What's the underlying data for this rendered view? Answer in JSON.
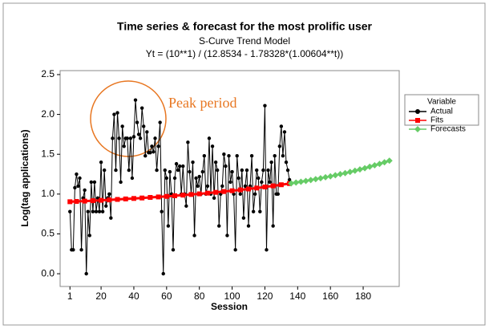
{
  "chart_data": {
    "type": "line",
    "title": "Time series & forecast for the most prolific user",
    "subtitle": "S-Curve Trend Model",
    "equation": "Yt = (10**1) / (12.8534 - 1.78328*(1.00604**t))",
    "x_label": "Session",
    "y_label": "Log(tag applications)",
    "annotation": "Peak period",
    "legend_title": "Variable",
    "legend_position": "right",
    "xlim": [
      -5,
      202
    ],
    "xticks": [
      1,
      20,
      40,
      60,
      80,
      100,
      120,
      140,
      160,
      180
    ],
    "ylim": [
      -0.16,
      2.55
    ],
    "yticks": [
      {
        "value": 0,
        "label": "0.0"
      },
      {
        "value": 0.5,
        "label": "0.5"
      },
      {
        "value": 1,
        "label": "1.0"
      },
      {
        "value": 1.5,
        "label": "1.5"
      },
      {
        "value": 2,
        "label": "2.0"
      },
      {
        "value": 2.5,
        "label": "2.5"
      }
    ],
    "series": [
      {
        "name": "Actual",
        "color": "#000000",
        "marker": "circle",
        "x": [
          1,
          2,
          3,
          4,
          5,
          6,
          7,
          8,
          9,
          10,
          11,
          12,
          13,
          14,
          15,
          16,
          17,
          18,
          19,
          20,
          21,
          22,
          23,
          24,
          25,
          26,
          27,
          28,
          29,
          30,
          31,
          32,
          33,
          34,
          35,
          36,
          37,
          38,
          39,
          40,
          41,
          42,
          43,
          44,
          45,
          46,
          47,
          48,
          49,
          50,
          51,
          52,
          53,
          54,
          55,
          56,
          57,
          58,
          59,
          60,
          61,
          62,
          63,
          64,
          65,
          66,
          67,
          68,
          69,
          70,
          71,
          72,
          73,
          74,
          75,
          76,
          77,
          78,
          79,
          80,
          81,
          82,
          83,
          84,
          85,
          86,
          87,
          88,
          89,
          90,
          91,
          92,
          93,
          94,
          95,
          96,
          97,
          98,
          99,
          100,
          101,
          102,
          103,
          104,
          105,
          106,
          107,
          108,
          109,
          110,
          111,
          112,
          113,
          114,
          115,
          116,
          117,
          118,
          119,
          120,
          121,
          122,
          123,
          124,
          125,
          126,
          127,
          128,
          129,
          130,
          131,
          132,
          133,
          134,
          135
        ],
        "values": [
          0.78,
          0.3,
          0.3,
          1.08,
          1.25,
          1.1,
          1.2,
          0.3,
          0.95,
          1.05,
          0,
          0.78,
          0.48,
          1.15,
          0.78,
          1.15,
          0.78,
          0.95,
          0.78,
          1.4,
          0.78,
          1.3,
          0.85,
          0.95,
          1,
          0.7,
          1.7,
          2,
          1.3,
          2.02,
          1.7,
          1.15,
          1.85,
          1.6,
          1.7,
          1.7,
          1.3,
          1.7,
          1.2,
          1.72,
          2.18,
          1.9,
          1.75,
          1.7,
          2.08,
          1.85,
          1.48,
          1.78,
          1.52,
          1.52,
          1.6,
          1.53,
          1.7,
          1.3,
          1.6,
          1.9,
          0.78,
          0,
          1.3,
          1.2,
          0.6,
          1.28,
          1,
          0.3,
          1.2,
          1.38,
          1.3,
          1.35,
          1,
          1.35,
          1,
          0.85,
          1.65,
          1.28,
          1,
          1.4,
          0.48,
          1.2,
          1.1,
          1.22,
          1,
          1.28,
          1.48,
          1,
          1.1,
          1.7,
          1,
          1.6,
          0.95,
          1.4,
          1.3,
          0.6,
          1,
          1.1,
          1.5,
          1.35,
          0.48,
          1.48,
          1.15,
          1.28,
          1,
          0.3,
          1.48,
          1.2,
          1,
          1.3,
          0.7,
          1.1,
          1.3,
          0.6,
          1.1,
          1.48,
          0.78,
          1,
          1.3,
          1.2,
          0.78,
          1.15,
          1.3,
          2.11,
          0.3,
          1.3,
          1.15,
          1.4,
          0.6,
          1.48,
          1,
          1,
          1.6,
          1.85,
          1.48,
          1.78,
          1.4,
          1.3,
          1.18
        ]
      },
      {
        "name": "Fits",
        "color": "#ff0000",
        "marker": "square",
        "x": [
          1,
          5,
          10,
          15,
          20,
          25,
          30,
          35,
          40,
          45,
          50,
          55,
          60,
          65,
          70,
          75,
          80,
          85,
          90,
          95,
          100,
          105,
          110,
          115,
          120,
          125,
          130,
          135
        ],
        "values": [
          0.904,
          0.908,
          0.912,
          0.917,
          0.922,
          0.927,
          0.933,
          0.939,
          0.945,
          0.951,
          0.958,
          0.964,
          0.971,
          0.979,
          0.987,
          0.995,
          1.003,
          1.012,
          1.022,
          1.032,
          1.042,
          1.053,
          1.064,
          1.076,
          1.089,
          1.103,
          1.117,
          1.132
        ]
      },
      {
        "name": "Forecasts",
        "color": "#66cc66",
        "marker": "diamond",
        "x": [
          136,
          139,
          142,
          145,
          148,
          151,
          154,
          157,
          160,
          163,
          166,
          169,
          172,
          175,
          178,
          181,
          184,
          187,
          190,
          193,
          196
        ],
        "values": [
          1.135,
          1.145,
          1.155,
          1.165,
          1.176,
          1.187,
          1.199,
          1.211,
          1.223,
          1.236,
          1.25,
          1.263,
          1.278,
          1.293,
          1.309,
          1.325,
          1.343,
          1.361,
          1.379,
          1.399,
          1.419
        ]
      }
    ]
  }
}
